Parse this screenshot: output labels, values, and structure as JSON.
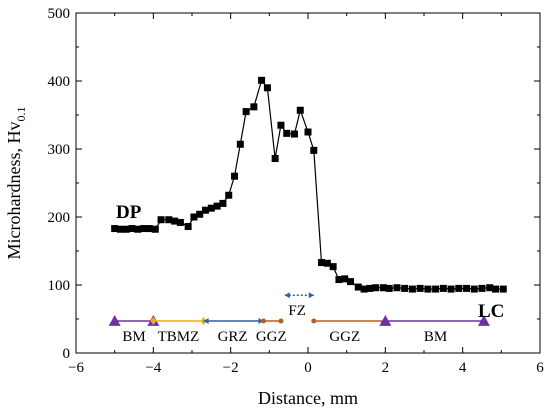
{
  "chart_data": {
    "type": "scatter",
    "xlabel": "Distance, mm",
    "ylabel_main": "Microhardness, Hv",
    "ylabel_sub": "0.1",
    "xlim": [
      -6,
      6
    ],
    "ylim": [
      0,
      500
    ],
    "xticks": [
      -6,
      -4,
      -2,
      0,
      2,
      4,
      6
    ],
    "yticks": [
      0,
      100,
      200,
      300,
      400,
      500
    ],
    "xtick_labels": [
      "−6",
      "−4",
      "−2",
      "0",
      "2",
      "4",
      "6"
    ],
    "ytick_labels": [
      "0",
      "100",
      "200",
      "300",
      "400",
      "500"
    ],
    "grid": false,
    "series": [
      {
        "marker": "square",
        "color": "#000000",
        "x": [
          -5.0,
          -4.85,
          -4.7,
          -4.55,
          -4.4,
          -4.25,
          -4.1,
          -3.95,
          -3.8,
          -3.6,
          -3.45,
          -3.3,
          -3.1,
          -2.95,
          -2.8,
          -2.65,
          -2.5,
          -2.35,
          -2.2,
          -2.05,
          -1.9,
          -1.75,
          -1.6,
          -1.4,
          -1.2,
          -1.05,
          -0.85,
          -0.7,
          -0.55,
          -0.35,
          -0.2,
          0.0,
          0.15,
          0.35,
          0.5,
          0.65,
          0.8,
          0.95,
          1.1,
          1.3,
          1.45,
          1.6,
          1.75,
          1.95,
          2.1,
          2.3,
          2.5,
          2.7,
          2.9,
          3.1,
          3.3,
          3.5,
          3.7,
          3.9,
          4.1,
          4.3,
          4.5,
          4.7,
          4.85,
          5.05
        ],
        "y": [
          183,
          182,
          182,
          183,
          182,
          183,
          183,
          182,
          196,
          196,
          194,
          192,
          186,
          200,
          204,
          210,
          213,
          216,
          220,
          232,
          260,
          307,
          355,
          362,
          401,
          390,
          286,
          335,
          323,
          322,
          357,
          325,
          298,
          133,
          132,
          127,
          108,
          109,
          105,
          97,
          94,
          95,
          96,
          96,
          95,
          96,
          95,
          94,
          95,
          94,
          94,
          95,
          94,
          95,
          95,
          94,
          95,
          96,
          94,
          94
        ]
      }
    ],
    "annotations": {
      "DP": "DP",
      "LC": "LC"
    },
    "zones": [
      {
        "label": "BM",
        "x1": -5.0,
        "x2": -4.0,
        "y": 47,
        "color": "#7030a0",
        "style": "solid",
        "label_x": -4.5,
        "label_y": 25
      },
      {
        "label": "TBMZ",
        "x1": -4.0,
        "x2": -2.7,
        "y": 47,
        "color": "#f0b000",
        "style": "solid",
        "label_x": -3.35,
        "label_y": 25
      },
      {
        "label": "GRZ",
        "x1": -2.7,
        "x2": -1.15,
        "y": 47,
        "color": "#2e5fa8",
        "style": "solid",
        "label_x": -1.95,
        "label_y": 25
      },
      {
        "label": "GGZ",
        "x1": -1.15,
        "x2": -0.7,
        "y": 47,
        "color": "#c55a11",
        "style": "solid",
        "label_x": -0.95,
        "label_y": 25
      },
      {
        "label": "FZ",
        "x1": -0.6,
        "x2": 0.15,
        "y": 85,
        "color": "#2e5fa8",
        "style": "dotted",
        "label_x": -0.28,
        "label_y": 63
      },
      {
        "label": "GGZ",
        "x1": 0.15,
        "x2": 2.0,
        "y": 47,
        "color": "#c55a11",
        "style": "solid",
        "label_x": 0.95,
        "label_y": 25
      },
      {
        "label": "BM",
        "x1": 2.0,
        "x2": 4.55,
        "y": 47,
        "color": "#7030a0",
        "style": "solid",
        "label_x": 3.3,
        "label_y": 25
      }
    ]
  }
}
